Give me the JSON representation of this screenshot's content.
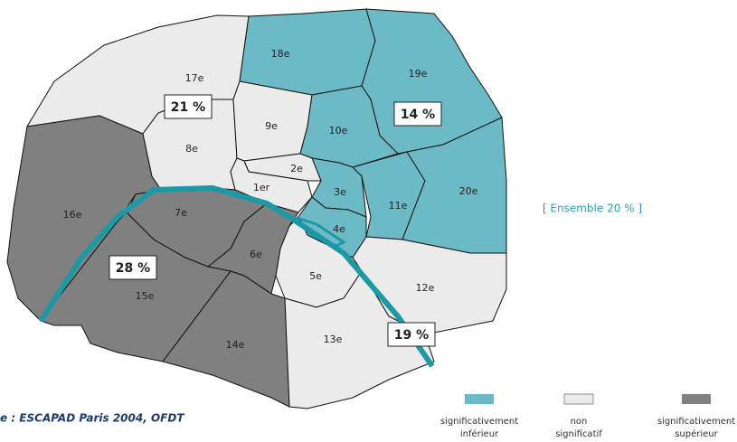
{
  "map": {
    "arrondissements": [
      {
        "label": "17e",
        "color": "#ebebeb"
      },
      {
        "label": "16e",
        "color": "#808080"
      },
      {
        "label": "8e",
        "color": "#ebebeb"
      },
      {
        "label": "18e",
        "color": "#6bbac5"
      },
      {
        "label": "9e",
        "color": "#ebebeb"
      },
      {
        "label": "19e",
        "color": "#6bbac5"
      },
      {
        "label": "10e",
        "color": "#6bbac5"
      },
      {
        "label": "11e",
        "color": "#6bbac5"
      },
      {
        "label": "20e",
        "color": "#6bbac5"
      },
      {
        "label": "3e",
        "color": "#6bbac5"
      },
      {
        "label": "2e",
        "color": "#ebebeb"
      },
      {
        "label": "1er",
        "color": "#ebebeb"
      },
      {
        "label": "4e",
        "color": "#6bbac5"
      },
      {
        "label": "12e",
        "color": "#ebebeb"
      },
      {
        "label": "5e",
        "color": "#ebebeb"
      },
      {
        "label": "6e",
        "color": "#808080"
      },
      {
        "label": "7e",
        "color": "#808080"
      },
      {
        "label": "15e",
        "color": "#808080"
      },
      {
        "label": "14e",
        "color": "#808080"
      },
      {
        "label": "13e",
        "color": "#ebebeb"
      }
    ],
    "river_color": "#1b9aa6",
    "percentages": [
      "21 %",
      "14 %",
      "28 %",
      "19 %"
    ],
    "overall": "[ Ensemble 20 % ]",
    "legend": [
      {
        "label": [
          "significativement",
          "inférieur"
        ],
        "color": "#6bbac5"
      },
      {
        "label": [
          "non",
          "significatif"
        ],
        "color": "#ebebeb"
      },
      {
        "label": [
          "significativement",
          "supérieur"
        ],
        "color": "#808080"
      }
    ],
    "source": "e : ESCAPAD Paris 2004, OFDT"
  }
}
